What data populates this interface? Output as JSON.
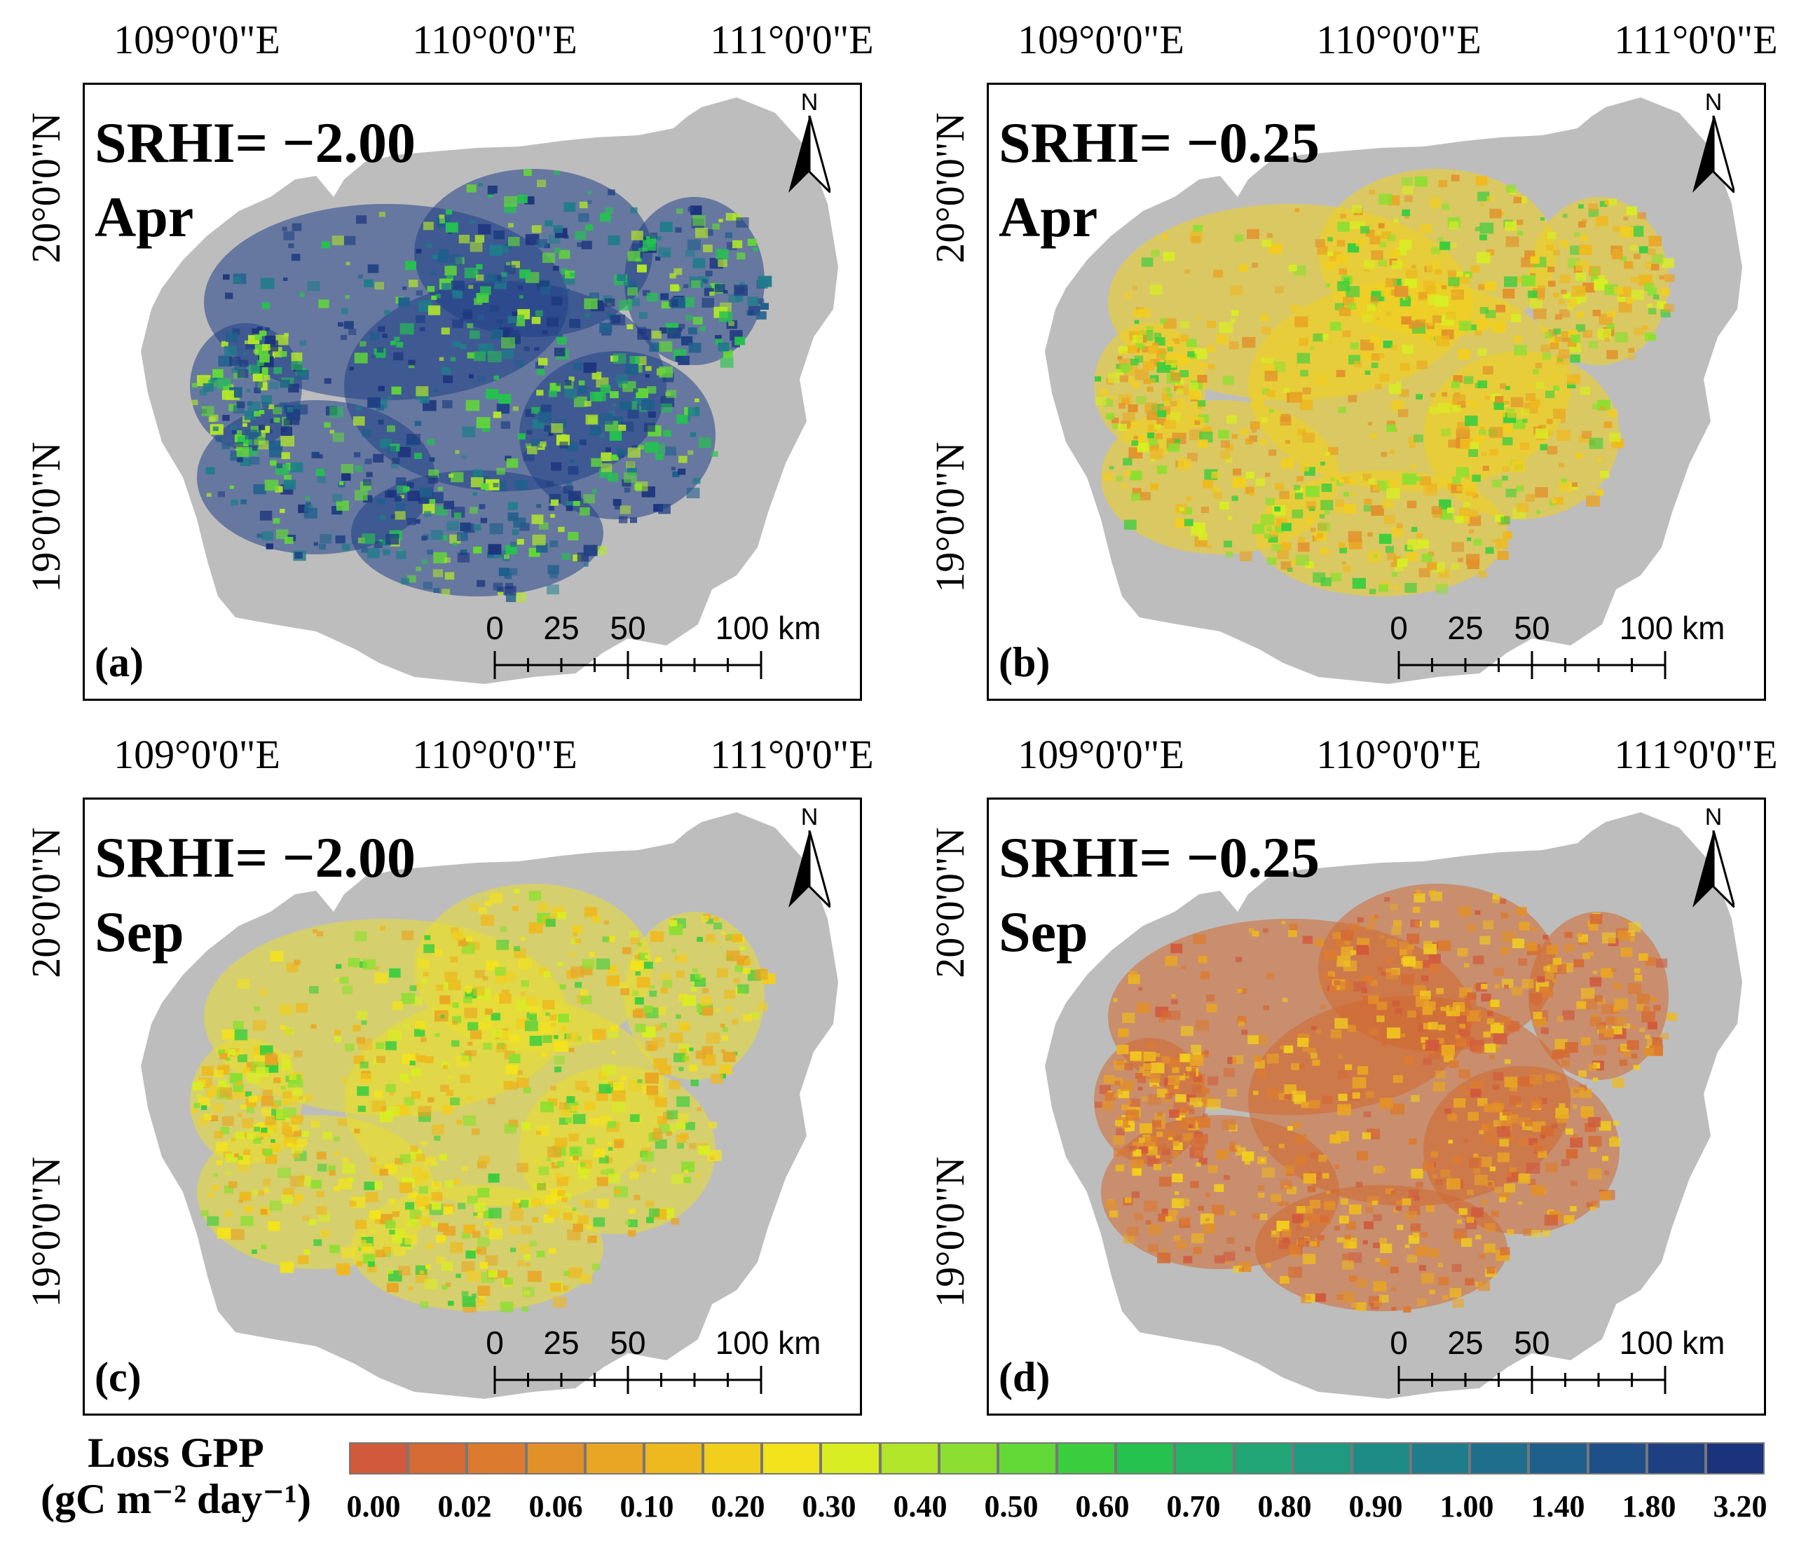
{
  "map": {
    "longitude_labels": [
      "109°0'0\"E",
      "110°0'0\"E",
      "111°0'0\"E"
    ],
    "latitude_labels": [
      "20°0'0\"N",
      "19°0'0\"N"
    ],
    "panels": [
      {
        "id": "a",
        "label": "(a)",
        "srhi": "SRHI= −2.00",
        "month": "Apr",
        "dominant_color": "#1f3f86"
      },
      {
        "id": "b",
        "label": "(b)",
        "srhi": "SRHI= −0.25",
        "month": "Apr",
        "dominant_color": "#f2d21a"
      },
      {
        "id": "c",
        "label": "(c)",
        "srhi": "SRHI= −2.00",
        "month": "Sep",
        "dominant_color": "#e9de2c"
      },
      {
        "id": "d",
        "label": "(d)",
        "srhi": "SRHI= −0.25",
        "month": "Sep",
        "dominant_color": "#d2672e"
      }
    ],
    "north_arrow_letter": "N",
    "scale_bar": {
      "ticks": [
        "0",
        "25",
        "50"
      ],
      "end_label": "100 km"
    },
    "land_color": "#bdbdbd",
    "legend": {
      "title_line1": "Loss GPP",
      "title_line2": "(gC m⁻² day⁻¹)",
      "values": [
        "0.00",
        "0.02",
        "0.06",
        "0.10",
        "0.20",
        "0.30",
        "0.40",
        "0.50",
        "0.60",
        "0.70",
        "0.80",
        "0.90",
        "1.00",
        "1.40",
        "1.80",
        "3.20"
      ],
      "colors": [
        "#d1593c",
        "#d56a34",
        "#dc7b30",
        "#e2902a",
        "#e9a524",
        "#eeb91f",
        "#f2ce1d",
        "#f3e31c",
        "#d8ee22",
        "#b2e62a",
        "#8cdf31",
        "#62d936",
        "#3acd3e",
        "#25c24f",
        "#23b464",
        "#22a678",
        "#1f9980",
        "#1f8b86",
        "#1f7c8a",
        "#1f6e8c",
        "#1f5f8c",
        "#1f4f88",
        "#1e4083",
        "#1b327c"
      ]
    }
  }
}
